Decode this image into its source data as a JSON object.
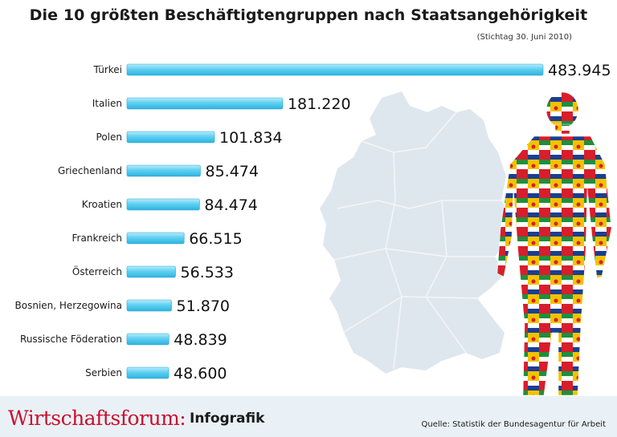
{
  "title": "Die 10 größten Beschäftigtengruppen nach Staatsangehörigkeit",
  "subtitle": "(Stichtag 30. Juni 2010)",
  "chart_data": {
    "type": "bar",
    "orientation": "horizontal",
    "title": "Die 10 größten Beschäftigtengruppen nach Staatsangehörigkeit",
    "categories": [
      "Türkei",
      "Italien",
      "Polen",
      "Griechenland",
      "Kroatien",
      "Frankreich",
      "Österreich",
      "Bosnien, Herzegowina",
      "Russische Föderation",
      "Serbien"
    ],
    "values": [
      483945,
      181220,
      101834,
      85474,
      84474,
      66515,
      56533,
      51870,
      48839,
      48600
    ],
    "value_labels": [
      "483.945",
      "181.220",
      "101.834",
      "85.474",
      "84.474",
      "66.515",
      "56.533",
      "51.870",
      "48.839",
      "48.600"
    ],
    "xlabel": "",
    "ylabel": "",
    "xlim": [
      0,
      483945
    ],
    "bar_color": "#5fd0f2"
  },
  "footer": {
    "brand": "Wirtschaftsforum:",
    "brand_sub": "Infografik",
    "source": "Quelle: Statistik der Bundesagentur für Arbeit"
  },
  "colors": {
    "map": "#dfe7ee",
    "brand": "#c8102e",
    "footer_bg": "#e9f1f6"
  }
}
